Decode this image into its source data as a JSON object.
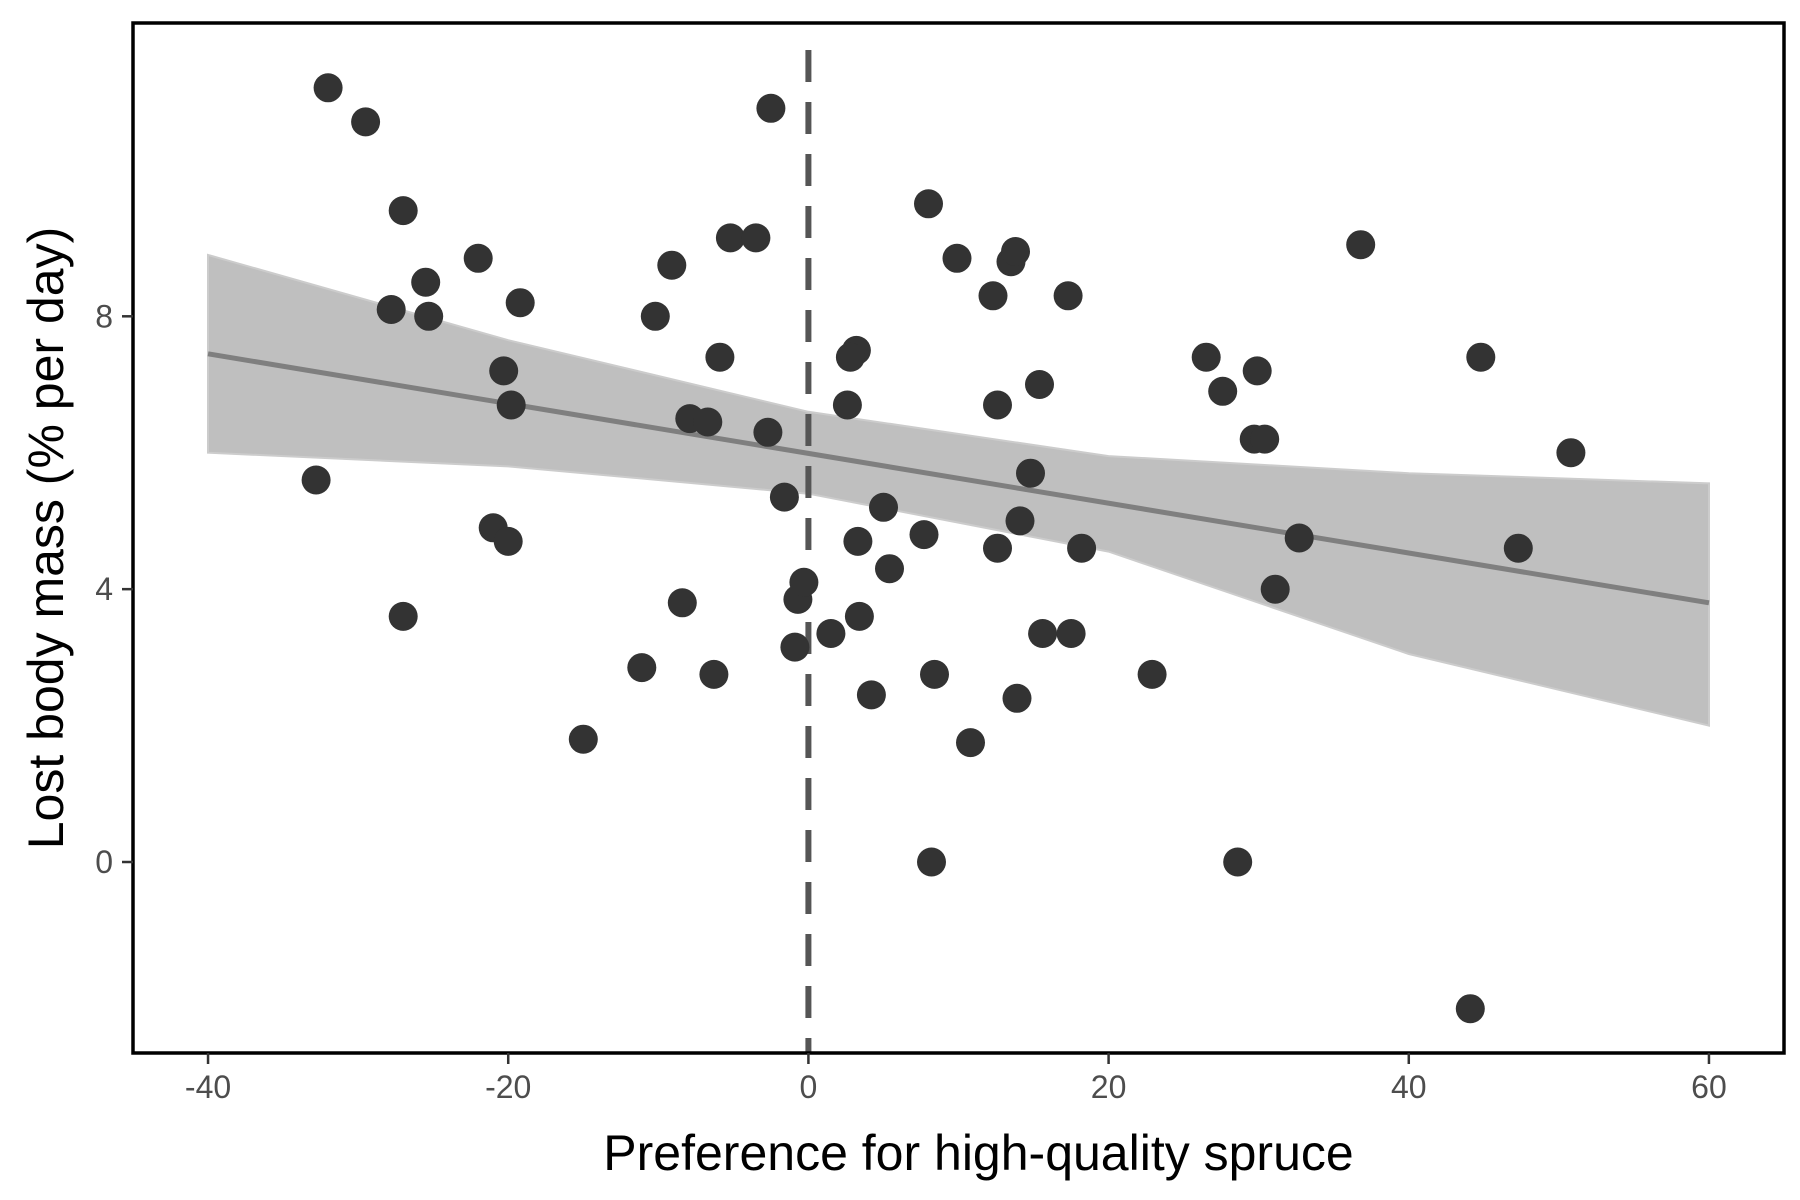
{
  "chart_data": {
    "type": "scatter",
    "title": "",
    "xlabel": "Preference for high-quality spruce",
    "ylabel": "Lost body mass (% per day)",
    "xlim": [
      -45,
      65
    ],
    "ylim": [
      -2.8,
      12.3
    ],
    "x_ticks": [
      -40,
      -20,
      0,
      20,
      40,
      60
    ],
    "y_ticks": [
      0,
      4,
      8
    ],
    "grid": false,
    "reference_line": {
      "x": 0,
      "style": "dashed",
      "color": "#555555"
    },
    "fit": {
      "x_start": -40,
      "y_start": 7.45,
      "x_end": 60,
      "y_end": 3.8,
      "color": "#7f7f7f",
      "band_color": "#bfbfbf",
      "band": [
        {
          "x": -40,
          "lower": 6.0,
          "upper": 8.9
        },
        {
          "x": -20,
          "lower": 5.8,
          "upper": 7.65
        },
        {
          "x": 0,
          "lower": 5.4,
          "upper": 6.6
        },
        {
          "x": 20,
          "lower": 4.55,
          "upper": 5.95
        },
        {
          "x": 40,
          "lower": 3.05,
          "upper": 5.7
        },
        {
          "x": 60,
          "lower": 2.0,
          "upper": 5.55
        }
      ]
    },
    "point_color": "#333333",
    "points": [
      {
        "x": -32,
        "y": 11.35
      },
      {
        "x": -29.5,
        "y": 10.85
      },
      {
        "x": -27,
        "y": 9.55
      },
      {
        "x": -22,
        "y": 8.85
      },
      {
        "x": -25.5,
        "y": 8.5
      },
      {
        "x": -25.3,
        "y": 8.0
      },
      {
        "x": -27.8,
        "y": 8.1
      },
      {
        "x": -19.2,
        "y": 8.2
      },
      {
        "x": -20.3,
        "y": 7.2
      },
      {
        "x": -19.8,
        "y": 6.7
      },
      {
        "x": -32.8,
        "y": 5.6
      },
      {
        "x": -21,
        "y": 4.9
      },
      {
        "x": -20,
        "y": 4.7
      },
      {
        "x": -27,
        "y": 3.6
      },
      {
        "x": -15,
        "y": 1.8
      },
      {
        "x": -2.5,
        "y": 11.05
      },
      {
        "x": -9.1,
        "y": 8.75
      },
      {
        "x": -10.2,
        "y": 8.0
      },
      {
        "x": -5.2,
        "y": 9.15
      },
      {
        "x": -3.5,
        "y": 9.15
      },
      {
        "x": -5.9,
        "y": 7.4
      },
      {
        "x": -7.9,
        "y": 6.5
      },
      {
        "x": -6.7,
        "y": 6.45
      },
      {
        "x": -2.7,
        "y": 6.3
      },
      {
        "x": -1.6,
        "y": 5.35
      },
      {
        "x": -8.4,
        "y": 3.8
      },
      {
        "x": -11.1,
        "y": 2.85
      },
      {
        "x": -6.3,
        "y": 2.75
      },
      {
        "x": -0.7,
        "y": 3.85
      },
      {
        "x": -0.9,
        "y": 3.15
      },
      {
        "x": -0.3,
        "y": 4.1
      },
      {
        "x": 8,
        "y": 9.65
      },
      {
        "x": 9.9,
        "y": 8.85
      },
      {
        "x": 13.5,
        "y": 8.8
      },
      {
        "x": 13.8,
        "y": 8.95
      },
      {
        "x": 12.3,
        "y": 8.3
      },
      {
        "x": 17.3,
        "y": 8.3
      },
      {
        "x": 3.2,
        "y": 7.5
      },
      {
        "x": 2.8,
        "y": 7.4
      },
      {
        "x": 2.6,
        "y": 6.7
      },
      {
        "x": 15.4,
        "y": 7.0
      },
      {
        "x": 12.6,
        "y": 6.7
      },
      {
        "x": 14.8,
        "y": 5.7
      },
      {
        "x": 5,
        "y": 5.2
      },
      {
        "x": 14.1,
        "y": 5.0
      },
      {
        "x": 7.7,
        "y": 4.8
      },
      {
        "x": 3.3,
        "y": 4.7
      },
      {
        "x": 12.6,
        "y": 4.6
      },
      {
        "x": 18.2,
        "y": 4.6
      },
      {
        "x": 5.4,
        "y": 4.3
      },
      {
        "x": 3.4,
        "y": 3.6
      },
      {
        "x": 1.5,
        "y": 3.35
      },
      {
        "x": 15.6,
        "y": 3.35
      },
      {
        "x": 17.5,
        "y": 3.35
      },
      {
        "x": 8.4,
        "y": 2.75
      },
      {
        "x": 4.2,
        "y": 2.45
      },
      {
        "x": 13.9,
        "y": 2.4
      },
      {
        "x": 10.8,
        "y": 1.75
      },
      {
        "x": 8.2,
        "y": 0.0
      },
      {
        "x": 22.9,
        "y": 2.75
      },
      {
        "x": 36.8,
        "y": 9.05
      },
      {
        "x": 26.5,
        "y": 7.4
      },
      {
        "x": 29.9,
        "y": 7.2
      },
      {
        "x": 27.6,
        "y": 6.9
      },
      {
        "x": 29.7,
        "y": 6.2
      },
      {
        "x": 30.4,
        "y": 6.2
      },
      {
        "x": 32.7,
        "y": 4.75
      },
      {
        "x": 31.1,
        "y": 4.0
      },
      {
        "x": 28.6,
        "y": 0.0
      },
      {
        "x": 44.8,
        "y": 7.4
      },
      {
        "x": 50.8,
        "y": 6.0
      },
      {
        "x": 47.3,
        "y": 4.6
      },
      {
        "x": 44.1,
        "y": -2.15
      }
    ]
  }
}
